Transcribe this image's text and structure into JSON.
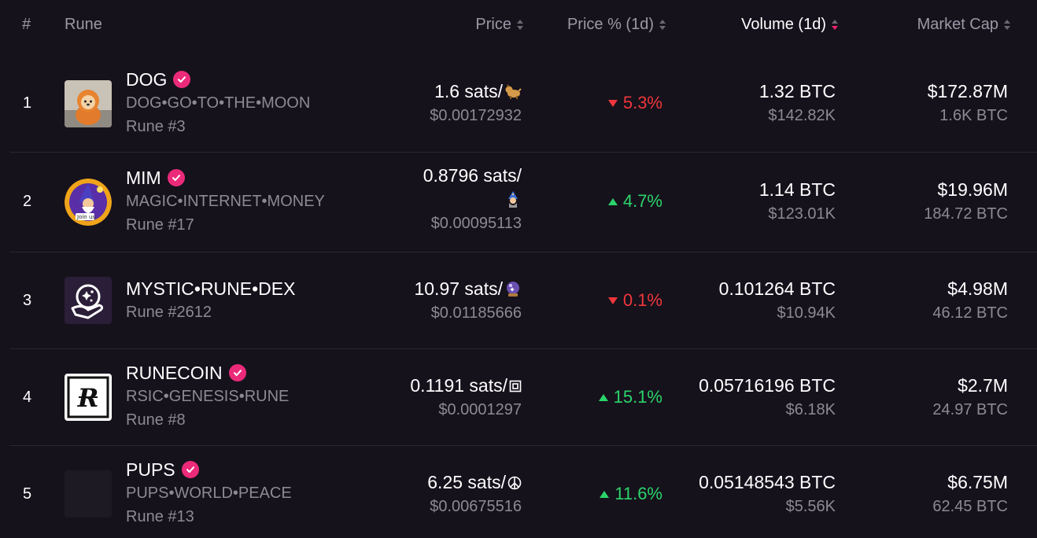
{
  "header": {
    "rank": "#",
    "rune": "Rune",
    "price": "Price",
    "price_pct": "Price % (1d)",
    "volume": "Volume (1d)",
    "market_cap": "Market Cap"
  },
  "colors": {
    "background": "#16121c",
    "accent": "#ec2a7a",
    "down": "#f0363c",
    "up": "#2bd46a"
  },
  "rows": [
    {
      "rank": "1",
      "name": "DOG",
      "verified": true,
      "spaced_name": "DOG•GO•TO•THE•MOON",
      "rune_no": "Rune #3",
      "price_sats": "1.6 sats/",
      "symbol_icon": "dog-emoji-icon",
      "price_usd": "$0.00172932",
      "change": "5.3%",
      "direction": "down",
      "volume_btc": "1.32 BTC",
      "volume_usd": "$142.82K",
      "mcap_usd": "$172.87M",
      "mcap_btc": "1.6K BTC"
    },
    {
      "rank": "2",
      "name": "MIM",
      "verified": true,
      "spaced_name": "MAGIC•INTERNET•MONEY",
      "rune_no": "Rune #17",
      "price_sats": "0.8796 sats/",
      "symbol_icon": "wizard-emoji-icon",
      "price_usd": "$0.00095113",
      "change": "4.7%",
      "direction": "up",
      "volume_btc": "1.14 BTC",
      "volume_usd": "$123.01K",
      "mcap_usd": "$19.96M",
      "mcap_btc": "184.72 BTC"
    },
    {
      "rank": "3",
      "name": "MYSTIC•RUNE•DEX",
      "verified": false,
      "spaced_name": "",
      "rune_no": "Rune #2612",
      "price_sats": "10.97 sats/",
      "symbol_icon": "crystal-ball-icon",
      "price_usd": "$0.01185666",
      "change": "0.1%",
      "direction": "down",
      "volume_btc": "0.101264 BTC",
      "volume_usd": "$10.94K",
      "mcap_usd": "$4.98M",
      "mcap_btc": "46.12 BTC"
    },
    {
      "rank": "4",
      "name": "RUNECOIN",
      "verified": true,
      "spaced_name": "RSIC•GENESIS•RUNE",
      "rune_no": "Rune #8",
      "price_sats": "0.1191 sats/",
      "symbol_icon": "box-symbol-icon",
      "price_usd": "$0.0001297",
      "change": "15.1%",
      "direction": "up",
      "volume_btc": "0.05716196 BTC",
      "volume_usd": "$6.18K",
      "mcap_usd": "$2.7M",
      "mcap_btc": "24.97 BTC"
    },
    {
      "rank": "5",
      "name": "PUPS",
      "verified": true,
      "spaced_name": "PUPS•WORLD•PEACE",
      "rune_no": "Rune #13",
      "price_sats": "6.25 sats/",
      "symbol_icon": "peace-symbol-icon",
      "price_usd": "$0.00675516",
      "change": "11.6%",
      "direction": "up",
      "volume_btc": "0.05148543 BTC",
      "volume_usd": "$5.56K",
      "mcap_usd": "$6.75M",
      "mcap_btc": "62.45 BTC"
    }
  ]
}
